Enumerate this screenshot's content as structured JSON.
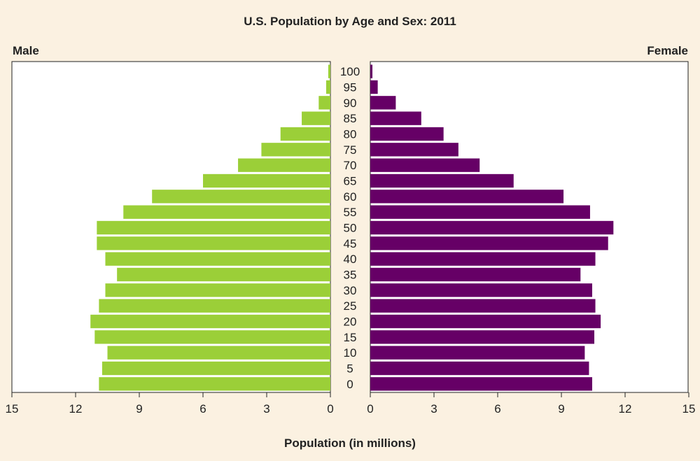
{
  "chart_data": {
    "type": "bar",
    "orientation": "horizontal-population-pyramid",
    "title": "U.S. Population by Age and Sex: 2011",
    "xlabel": "Population (in millions)",
    "xlim": [
      0,
      15
    ],
    "xticks": [
      0,
      3,
      6,
      9,
      12,
      15
    ],
    "grid": false,
    "categories": [
      "0",
      "5",
      "10",
      "15",
      "20",
      "25",
      "30",
      "35",
      "40",
      "45",
      "50",
      "55",
      "60",
      "65",
      "70",
      "75",
      "80",
      "85",
      "90",
      "95",
      "100"
    ],
    "series": [
      {
        "name": "Male",
        "color": "#9bcf38",
        "values": [
          10.9,
          10.75,
          10.5,
          11.1,
          11.3,
          10.9,
          10.6,
          10.05,
          10.6,
          11.0,
          11.0,
          9.75,
          8.4,
          6.0,
          4.35,
          3.25,
          2.35,
          1.35,
          0.55,
          0.2,
          0.1
        ]
      },
      {
        "name": "Female",
        "color": "#660066",
        "values": [
          10.45,
          10.3,
          10.1,
          10.55,
          10.85,
          10.6,
          10.45,
          9.9,
          10.6,
          11.2,
          11.45,
          10.35,
          9.1,
          6.75,
          5.15,
          4.15,
          3.45,
          2.4,
          1.2,
          0.35,
          0.1
        ]
      }
    ]
  }
}
